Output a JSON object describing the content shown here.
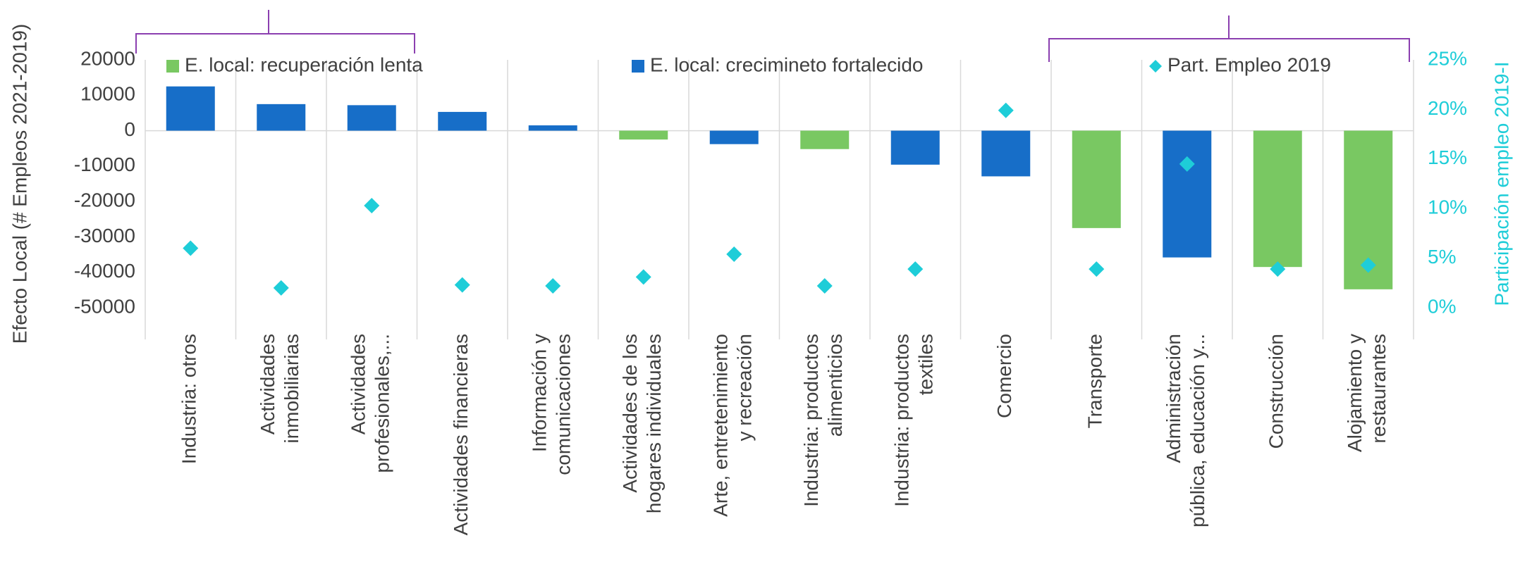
{
  "chart_data": {
    "type": "bar",
    "categories": [
      "Industria: otros",
      "Actividades\ninmobiliarias",
      "Actividades\nprofesionales,...",
      "Actividades financieras",
      "Información y\ncomunicaciones",
      "Actividades de los\nhogares individuales",
      "Arte, entretenimiento\ny recreación",
      "Industria: productos\nalimenticios",
      "Industria: productos\ntextiles",
      "Comercio",
      "Transporte",
      "Administración\npública, educación y...",
      "Construcción",
      "Alojamiento y\nrestaurantes"
    ],
    "series": [
      {
        "name": "E. local: recuperación lenta",
        "color": "#79c862",
        "values": [
          null,
          null,
          null,
          null,
          null,
          -2500,
          null,
          -5200,
          null,
          null,
          -27500,
          null,
          -38500,
          -44800
        ]
      },
      {
        "name": "E. local: crecimineto fortalecido",
        "color": "#176ec8",
        "values": [
          12500,
          7500,
          7200,
          5300,
          1500,
          null,
          -3800,
          null,
          -9600,
          -12900,
          null,
          -35800,
          null,
          null
        ]
      },
      {
        "name": "Part. Empleo 2019",
        "type": "scatter",
        "axis": "y2",
        "color": "#1ecdd8",
        "values": [
          6.0,
          2.0,
          10.3,
          2.3,
          2.2,
          3.1,
          5.4,
          2.2,
          3.9,
          19.9,
          3.9,
          14.5,
          3.9,
          4.3
        ]
      }
    ],
    "y_label": "Efecto Local (# Empleos 2021-2019)",
    "y2_label": "Participación empleo 2019-I",
    "ylim": [
      -50000,
      20000
    ],
    "yticks": [
      -50000,
      -40000,
      -30000,
      -20000,
      -10000,
      0,
      10000,
      20000
    ],
    "y2lim": [
      0,
      25
    ],
    "y2ticks": [
      {
        "value": 0,
        "label": "0%"
      },
      {
        "value": 5,
        "label": "5%"
      },
      {
        "value": 10,
        "label": "10%"
      },
      {
        "value": 15,
        "label": "15%"
      },
      {
        "value": 20,
        "label": "20%"
      },
      {
        "value": 25,
        "label": "25%"
      }
    ]
  }
}
